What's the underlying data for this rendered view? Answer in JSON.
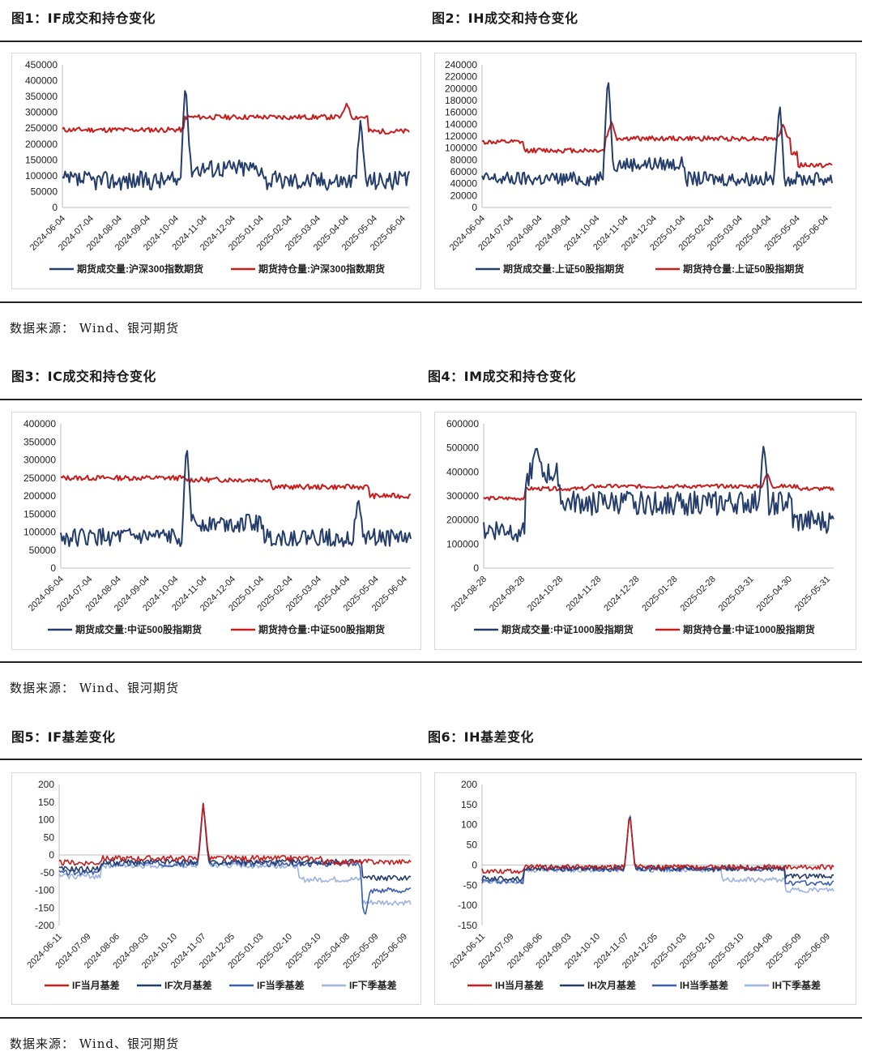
{
  "section1": {
    "fig1_title": "图1：IF成交和持仓变化",
    "fig2_title": "图2：IH成交和持仓变化",
    "source": "数据来源： Wind、银河期货"
  },
  "section2": {
    "fig3_title": "图3：IC成交和持仓变化",
    "fig4_title": "图4：IM成交和持仓变化",
    "source": "数据来源： Wind、银河期货"
  },
  "section3": {
    "fig5_title": "图5：IF基差变化",
    "fig6_title": "图6：IH基差变化",
    "source": "数据来源： Wind、银河期货"
  },
  "colors": {
    "volume": "#253d6b",
    "open_interest": "#c81d1d",
    "basis_current": "#c81d1d",
    "basis_next": "#253d6b",
    "basis_quarter": "#3d5fae",
    "basis_next_quarter": "#9db3e0"
  },
  "chart_data": [
    {
      "id": "fig1",
      "type": "line",
      "categories": [
        "2024-06-04",
        "2024-07-04",
        "2024-08-04",
        "2024-09-04",
        "2024-10-04",
        "2024-11-04",
        "2024-12-04",
        "2025-01-04",
        "2025-02-04",
        "2025-03-04",
        "2025-04-04",
        "2025-05-04",
        "2025-06-04"
      ],
      "yticks": [
        0,
        50000,
        100000,
        150000,
        200000,
        250000,
        300000,
        350000,
        400000,
        450000
      ],
      "ylim": [
        0,
        450000
      ],
      "grid": false,
      "legend_position": "bottom",
      "series": [
        {
          "name": "期货成交量:沪深300指数期货",
          "color_key": "volume"
        },
        {
          "name": "期货持仓量:沪深300指数期货",
          "color_key": "open_interest"
        }
      ]
    },
    {
      "id": "fig2",
      "type": "line",
      "categories": [
        "2024-06-04",
        "2024-07-04",
        "2024-08-04",
        "2024-09-04",
        "2024-10-04",
        "2024-11-04",
        "2024-12-04",
        "2025-01-04",
        "2025-02-04",
        "2025-03-04",
        "2025-04-04",
        "2025-05-04",
        "2025-06-04"
      ],
      "yticks": [
        0,
        20000,
        40000,
        60000,
        80000,
        100000,
        120000,
        140000,
        160000,
        180000,
        200000,
        220000,
        240000
      ],
      "ylim": [
        0,
        240000
      ],
      "grid": false,
      "legend_position": "bottom",
      "series": [
        {
          "name": "期货成交量:上证50股指期货",
          "color_key": "volume"
        },
        {
          "name": "期货持仓量:上证50股指期货",
          "color_key": "open_interest"
        }
      ]
    },
    {
      "id": "fig3",
      "type": "line",
      "categories": [
        "2024-06-04",
        "2024-07-04",
        "2024-08-04",
        "2024-09-04",
        "2024-10-04",
        "2024-11-04",
        "2024-12-04",
        "2025-01-04",
        "2025-02-04",
        "2025-03-04",
        "2025-04-04",
        "2025-05-04",
        "2025-06-04"
      ],
      "yticks": [
        0,
        50000,
        100000,
        150000,
        200000,
        250000,
        300000,
        350000,
        400000
      ],
      "ylim": [
        0,
        400000
      ],
      "grid": false,
      "legend_position": "bottom",
      "series": [
        {
          "name": "期货成交量:中证500股指期货",
          "color_key": "volume"
        },
        {
          "name": "期货持仓量:中证500股指期货",
          "color_key": "open_interest"
        }
      ]
    },
    {
      "id": "fig4",
      "type": "line",
      "categories": [
        "2024-08-28",
        "2024-09-28",
        "2024-10-28",
        "2024-11-28",
        "2024-12-28",
        "2025-01-28",
        "2025-02-28",
        "2025-03-31",
        "2025-04-30",
        "2025-05-31"
      ],
      "yticks": [
        0,
        100000,
        200000,
        300000,
        400000,
        500000,
        600000
      ],
      "ylim": [
        0,
        600000
      ],
      "grid": false,
      "legend_position": "bottom",
      "series": [
        {
          "name": "期货成交量:中证1000股指期货",
          "color_key": "volume"
        },
        {
          "name": "期货持仓量:中证1000股指期货",
          "color_key": "open_interest"
        }
      ]
    },
    {
      "id": "fig5",
      "type": "line",
      "categories": [
        "2024-06-11",
        "2024-07-09",
        "2024-08-06",
        "2024-09-03",
        "2024-10-10",
        "2024-11-07",
        "2024-12-05",
        "2025-01-03",
        "2025-02-10",
        "2025-03-10",
        "2025-04-08",
        "2025-05-09",
        "2025-06-09"
      ],
      "yticks": [
        -200,
        -150,
        -100,
        -50,
        0,
        50,
        100,
        150,
        200
      ],
      "ylim": [
        -200,
        200
      ],
      "grid": false,
      "legend_position": "bottom",
      "series": [
        {
          "name": "IF当月基差",
          "color_key": "basis_current"
        },
        {
          "name": "IF次月基差",
          "color_key": "basis_next"
        },
        {
          "name": "IF当季基差",
          "color_key": "basis_quarter"
        },
        {
          "name": "IF下季基差",
          "color_key": "basis_next_quarter"
        }
      ]
    },
    {
      "id": "fig6",
      "type": "line",
      "categories": [
        "2024-06-11",
        "2024-07-09",
        "2024-08-06",
        "2024-09-03",
        "2024-10-10",
        "2024-11-07",
        "2024-12-05",
        "2025-01-03",
        "2025-02-10",
        "2025-03-10",
        "2025-04-08",
        "2025-05-09",
        "2025-06-09"
      ],
      "yticks": [
        -150,
        -100,
        -50,
        0,
        50,
        100,
        150,
        200
      ],
      "ylim": [
        -150,
        200
      ],
      "grid": false,
      "legend_position": "bottom",
      "series": [
        {
          "name": "IH当月基差",
          "color_key": "basis_current"
        },
        {
          "name": "IH次月基差",
          "color_key": "basis_next"
        },
        {
          "name": "IH当季基差",
          "color_key": "basis_quarter"
        },
        {
          "name": "IH下季基差",
          "color_key": "basis_next_quarter"
        }
      ]
    }
  ]
}
